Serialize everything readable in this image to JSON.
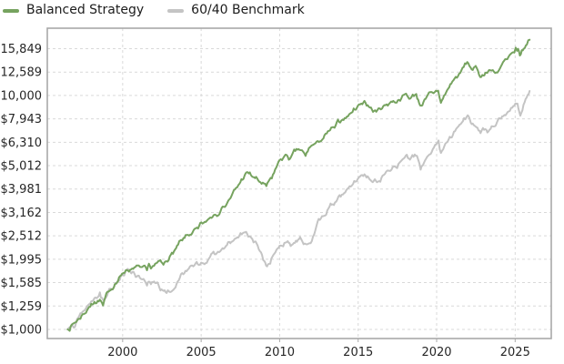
{
  "legend": {
    "items": [
      {
        "label": "Balanced Strategy",
        "color": "#76a35f"
      },
      {
        "label": "60/40 Benchmark",
        "color": "#c4c4c4"
      }
    ]
  },
  "chart_data": {
    "type": "line",
    "title": "",
    "xlabel": "",
    "ylabel": "",
    "grid": "dashed",
    "legend_position": "top-left",
    "colors": {
      "grid": "#d9d9d9",
      "border": "#a8a8a8",
      "tick_text": "#262626"
    },
    "x_axis": {
      "xlim": [
        1995.2,
        2027.3
      ],
      "ticks": [
        2000,
        2005,
        2010,
        2015,
        2020,
        2025
      ],
      "labels": [
        "2000",
        "2005",
        "2010",
        "2015",
        "2020",
        "2025"
      ]
    },
    "y_axis": {
      "scale": "log",
      "ylim": [
        914,
        19390
      ],
      "ticks": [
        1000,
        1259,
        1585,
        1995,
        2512,
        3162,
        3981,
        5012,
        6310,
        7943,
        10000,
        12589,
        15849
      ],
      "labels": [
        "$1,000",
        "$1,259",
        "$1,585",
        "$1,995",
        "$2,512",
        "$3,162",
        "$3,981",
        "$5,012",
        "$6,310",
        "$7,943",
        "$10,000",
        "$12,589",
        "$15,849"
      ]
    },
    "series": [
      {
        "name": "Balanced Strategy",
        "color": "#76a35f",
        "points": [
          [
            1996.5,
            1000
          ],
          [
            1996.75,
            1045
          ],
          [
            1997.1,
            1090
          ],
          [
            1997.45,
            1160
          ],
          [
            1997.8,
            1230
          ],
          [
            1998.2,
            1310
          ],
          [
            1998.55,
            1340
          ],
          [
            1998.75,
            1265
          ],
          [
            1999.1,
            1450
          ],
          [
            1999.5,
            1560
          ],
          [
            1999.9,
            1700
          ],
          [
            2000.2,
            1790
          ],
          [
            2000.6,
            1820
          ],
          [
            2001.1,
            1850
          ],
          [
            2001.55,
            1790
          ],
          [
            2001.8,
            1820
          ],
          [
            2002.2,
            1930
          ],
          [
            2002.6,
            1890
          ],
          [
            2003.0,
            2050
          ],
          [
            2003.4,
            2220
          ],
          [
            2003.8,
            2400
          ],
          [
            2004.3,
            2540
          ],
          [
            2004.8,
            2700
          ],
          [
            2005.3,
            2880
          ],
          [
            2005.8,
            3080
          ],
          [
            2006.3,
            3300
          ],
          [
            2006.8,
            3600
          ],
          [
            2007.3,
            4050
          ],
          [
            2007.9,
            4700
          ],
          [
            2008.3,
            4480
          ],
          [
            2008.7,
            4280
          ],
          [
            2009.15,
            4100
          ],
          [
            2009.5,
            4420
          ],
          [
            2010.0,
            5300
          ],
          [
            2010.45,
            5560
          ],
          [
            2010.65,
            5350
          ],
          [
            2011.2,
            5900
          ],
          [
            2011.65,
            5520
          ],
          [
            2012.0,
            6080
          ],
          [
            2012.5,
            6320
          ],
          [
            2013.0,
            6880
          ],
          [
            2013.5,
            7280
          ],
          [
            2014.0,
            7880
          ],
          [
            2014.5,
            8380
          ],
          [
            2015.0,
            9080
          ],
          [
            2015.4,
            9480
          ],
          [
            2015.75,
            8880
          ],
          [
            2016.15,
            8520
          ],
          [
            2016.6,
            9000
          ],
          [
            2017.1,
            9420
          ],
          [
            2017.6,
            9580
          ],
          [
            2018.05,
            10180
          ],
          [
            2018.25,
            9680
          ],
          [
            2018.7,
            10150
          ],
          [
            2018.95,
            9060
          ],
          [
            2019.3,
            9680
          ],
          [
            2019.8,
            10230
          ],
          [
            2020.1,
            10480
          ],
          [
            2020.27,
            9300
          ],
          [
            2020.6,
            10300
          ],
          [
            2021.0,
            11480
          ],
          [
            2021.5,
            12480
          ],
          [
            2021.95,
            13900
          ],
          [
            2022.3,
            12850
          ],
          [
            2022.55,
            13120
          ],
          [
            2022.78,
            11980
          ],
          [
            2023.1,
            12500
          ],
          [
            2023.35,
            12850
          ],
          [
            2023.8,
            12550
          ],
          [
            2024.1,
            13350
          ],
          [
            2024.5,
            14300
          ],
          [
            2024.95,
            15250
          ],
          [
            2025.12,
            15520
          ],
          [
            2025.3,
            14820
          ],
          [
            2025.55,
            15850
          ],
          [
            2025.75,
            16500
          ],
          [
            2025.92,
            17300
          ]
        ]
      },
      {
        "name": "60/40 Benchmark",
        "color": "#c4c4c4",
        "points": [
          [
            1996.5,
            1000
          ],
          [
            1996.75,
            1050
          ],
          [
            1997.1,
            1110
          ],
          [
            1997.45,
            1190
          ],
          [
            1997.8,
            1270
          ],
          [
            1998.2,
            1360
          ],
          [
            1998.55,
            1440
          ],
          [
            1998.8,
            1330
          ],
          [
            1999.15,
            1490
          ],
          [
            1999.55,
            1580
          ],
          [
            1999.95,
            1730
          ],
          [
            2000.25,
            1800
          ],
          [
            2000.7,
            1760
          ],
          [
            2001.1,
            1660
          ],
          [
            2001.55,
            1540
          ],
          [
            2001.8,
            1560
          ],
          [
            2002.2,
            1590
          ],
          [
            2002.55,
            1470
          ],
          [
            2002.8,
            1430
          ],
          [
            2003.1,
            1450
          ],
          [
            2003.5,
            1600
          ],
          [
            2004.0,
            1780
          ],
          [
            2004.5,
            1860
          ],
          [
            2005.0,
            1930
          ],
          [
            2005.5,
            2010
          ],
          [
            2006.0,
            2120
          ],
          [
            2006.5,
            2230
          ],
          [
            2007.0,
            2380
          ],
          [
            2007.8,
            2600
          ],
          [
            2008.2,
            2460
          ],
          [
            2008.6,
            2280
          ],
          [
            2008.95,
            1980
          ],
          [
            2009.2,
            1860
          ],
          [
            2009.6,
            2080
          ],
          [
            2010.0,
            2280
          ],
          [
            2010.45,
            2360
          ],
          [
            2010.7,
            2270
          ],
          [
            2011.3,
            2480
          ],
          [
            2011.75,
            2310
          ],
          [
            2012.2,
            2550
          ],
          [
            2012.7,
            3050
          ],
          [
            2013.1,
            3280
          ],
          [
            2013.6,
            3520
          ],
          [
            2014.1,
            3820
          ],
          [
            2014.6,
            4120
          ],
          [
            2015.05,
            4470
          ],
          [
            2015.4,
            4600
          ],
          [
            2015.8,
            4340
          ],
          [
            2016.2,
            4260
          ],
          [
            2016.7,
            4620
          ],
          [
            2017.2,
            4950
          ],
          [
            2017.7,
            5220
          ],
          [
            2018.1,
            5580
          ],
          [
            2018.3,
            5320
          ],
          [
            2018.75,
            5520
          ],
          [
            2018.98,
            4820
          ],
          [
            2019.4,
            5480
          ],
          [
            2019.9,
            6150
          ],
          [
            2020.12,
            6420
          ],
          [
            2020.27,
            5680
          ],
          [
            2020.7,
            6350
          ],
          [
            2021.1,
            7000
          ],
          [
            2021.6,
            7650
          ],
          [
            2021.98,
            8230
          ],
          [
            2022.3,
            7580
          ],
          [
            2022.6,
            7280
          ],
          [
            2022.8,
            6900
          ],
          [
            2023.1,
            7180
          ],
          [
            2023.3,
            7020
          ],
          [
            2023.7,
            7380
          ],
          [
            2024.1,
            7950
          ],
          [
            2024.6,
            8550
          ],
          [
            2024.95,
            9050
          ],
          [
            2025.15,
            9230
          ],
          [
            2025.33,
            8200
          ],
          [
            2025.6,
            9350
          ],
          [
            2025.92,
            10450
          ]
        ]
      }
    ]
  }
}
